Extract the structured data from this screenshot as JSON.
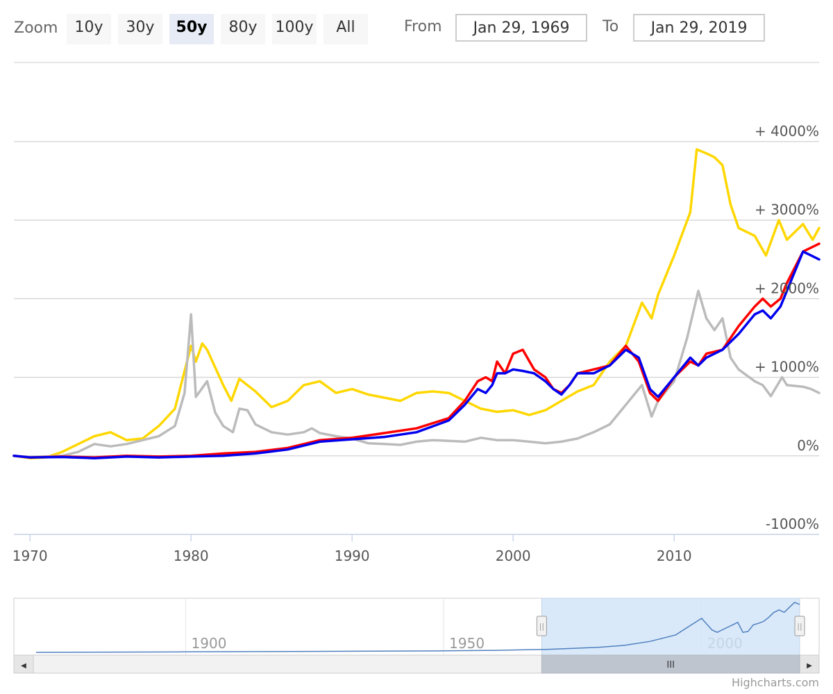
{
  "toolbar": {
    "zoom_label": "Zoom",
    "buttons": [
      "10y",
      "30y",
      "50y",
      "80y",
      "100y",
      "All"
    ],
    "active_button": "50y",
    "from_label": "From",
    "from_value": "Jan 29, 1969",
    "to_label": "To",
    "to_value": "Jan 29, 2019"
  },
  "credit": "Highcharts.com",
  "navigator": {
    "tick_labels": [
      "1900",
      "1950",
      "2000"
    ],
    "scroll_grip": "III",
    "scroll_left_arrow": "◀",
    "scroll_right_arrow": "▶",
    "handle_grip": "||"
  },
  "chart_data": {
    "type": "line",
    "xlabel": "",
    "ylabel": "",
    "x_range": [
      1969,
      2019
    ],
    "ylim": [
      -1000,
      4000
    ],
    "y_ticks": [
      -1000,
      0,
      1000,
      2000,
      3000,
      4000
    ],
    "y_tick_labels": [
      "-1000%",
      "0%",
      "+ 1000%",
      "+ 2000%",
      "+ 3000%",
      "+ 4000%"
    ],
    "x_ticks": [
      1970,
      1980,
      1990,
      2000,
      2010
    ],
    "x_tick_labels": [
      "1970",
      "1980",
      "1990",
      "2000",
      "2010"
    ],
    "grid": true,
    "legend": "none",
    "series": [
      {
        "color": "#ffd700",
        "points": [
          [
            1969,
            0
          ],
          [
            1970,
            -30
          ],
          [
            1971,
            -20
          ],
          [
            1972,
            50
          ],
          [
            1973,
            150
          ],
          [
            1974,
            250
          ],
          [
            1975,
            300
          ],
          [
            1976,
            200
          ],
          [
            1977,
            220
          ],
          [
            1978,
            380
          ],
          [
            1979,
            600
          ],
          [
            1980,
            1400
          ],
          [
            1980.3,
            1200
          ],
          [
            1980.7,
            1430
          ],
          [
            1981,
            1350
          ],
          [
            1982,
            900
          ],
          [
            1982.5,
            700
          ],
          [
            1983,
            980
          ],
          [
            1984,
            820
          ],
          [
            1985,
            620
          ],
          [
            1986,
            700
          ],
          [
            1987,
            900
          ],
          [
            1988,
            950
          ],
          [
            1989,
            800
          ],
          [
            1990,
            850
          ],
          [
            1991,
            780
          ],
          [
            1992,
            740
          ],
          [
            1993,
            700
          ],
          [
            1994,
            800
          ],
          [
            1995,
            820
          ],
          [
            1996,
            800
          ],
          [
            1997,
            700
          ],
          [
            1998,
            600
          ],
          [
            1999,
            560
          ],
          [
            2000,
            580
          ],
          [
            2001,
            520
          ],
          [
            2002,
            580
          ],
          [
            2003,
            700
          ],
          [
            2004,
            820
          ],
          [
            2005,
            900
          ],
          [
            2006,
            1200
          ],
          [
            2007,
            1400
          ],
          [
            2008,
            1950
          ],
          [
            2008.6,
            1750
          ],
          [
            2009,
            2050
          ],
          [
            2010,
            2550
          ],
          [
            2011,
            3100
          ],
          [
            2011.4,
            3900
          ],
          [
            2012,
            3850
          ],
          [
            2012.5,
            3800
          ],
          [
            2013,
            3700
          ],
          [
            2013.5,
            3200
          ],
          [
            2014,
            2900
          ],
          [
            2015,
            2800
          ],
          [
            2015.7,
            2550
          ],
          [
            2016.5,
            3000
          ],
          [
            2017,
            2750
          ],
          [
            2018,
            2950
          ],
          [
            2018.6,
            2750
          ],
          [
            2019,
            2900
          ]
        ]
      },
      {
        "color": "#bbbbbb",
        "points": [
          [
            1969,
            0
          ],
          [
            1970,
            -20
          ],
          [
            1971,
            -10
          ],
          [
            1972,
            0
          ],
          [
            1973,
            50
          ],
          [
            1974,
            150
          ],
          [
            1975,
            120
          ],
          [
            1976,
            150
          ],
          [
            1977,
            200
          ],
          [
            1978,
            250
          ],
          [
            1979,
            380
          ],
          [
            1979.6,
            800
          ],
          [
            1980,
            1800
          ],
          [
            1980.3,
            750
          ],
          [
            1981,
            950
          ],
          [
            1981.5,
            550
          ],
          [
            1982,
            380
          ],
          [
            1982.6,
            300
          ],
          [
            1983,
            600
          ],
          [
            1983.5,
            580
          ],
          [
            1984,
            400
          ],
          [
            1985,
            300
          ],
          [
            1986,
            270
          ],
          [
            1987,
            300
          ],
          [
            1987.5,
            350
          ],
          [
            1988,
            290
          ],
          [
            1989,
            250
          ],
          [
            1990,
            220
          ],
          [
            1991,
            160
          ],
          [
            1992,
            150
          ],
          [
            1993,
            140
          ],
          [
            1994,
            180
          ],
          [
            1995,
            200
          ],
          [
            1996,
            190
          ],
          [
            1997,
            180
          ],
          [
            1998,
            230
          ],
          [
            1999,
            200
          ],
          [
            2000,
            200
          ],
          [
            2001,
            180
          ],
          [
            2002,
            160
          ],
          [
            2003,
            180
          ],
          [
            2004,
            220
          ],
          [
            2005,
            300
          ],
          [
            2006,
            400
          ],
          [
            2007,
            650
          ],
          [
            2008,
            900
          ],
          [
            2008.6,
            500
          ],
          [
            2009,
            700
          ],
          [
            2010,
            950
          ],
          [
            2010.8,
            1500
          ],
          [
            2011.5,
            2100
          ],
          [
            2012,
            1750
          ],
          [
            2012.5,
            1600
          ],
          [
            2013,
            1750
          ],
          [
            2013.5,
            1250
          ],
          [
            2014,
            1100
          ],
          [
            2015,
            950
          ],
          [
            2015.5,
            900
          ],
          [
            2016,
            760
          ],
          [
            2016.7,
            1000
          ],
          [
            2017,
            900
          ],
          [
            2018,
            880
          ],
          [
            2018.5,
            850
          ],
          [
            2019,
            800
          ]
        ]
      },
      {
        "color": "#ff0000",
        "points": [
          [
            1969,
            0
          ],
          [
            1970,
            -20
          ],
          [
            1972,
            -10
          ],
          [
            1974,
            -20
          ],
          [
            1976,
            0
          ],
          [
            1978,
            -10
          ],
          [
            1980,
            0
          ],
          [
            1982,
            30
          ],
          [
            1984,
            50
          ],
          [
            1986,
            100
          ],
          [
            1988,
            200
          ],
          [
            1990,
            230
          ],
          [
            1992,
            290
          ],
          [
            1994,
            350
          ],
          [
            1996,
            480
          ],
          [
            1997,
            700
          ],
          [
            1997.8,
            950
          ],
          [
            1998.3,
            1000
          ],
          [
            1998.7,
            950
          ],
          [
            1999,
            1200
          ],
          [
            1999.5,
            1050
          ],
          [
            2000,
            1300
          ],
          [
            2000.6,
            1350
          ],
          [
            2001.3,
            1100
          ],
          [
            2002,
            1000
          ],
          [
            2002.5,
            850
          ],
          [
            2003,
            800
          ],
          [
            2003.5,
            900
          ],
          [
            2004,
            1050
          ],
          [
            2005,
            1100
          ],
          [
            2006,
            1150
          ],
          [
            2007,
            1400
          ],
          [
            2007.8,
            1200
          ],
          [
            2008.5,
            800
          ],
          [
            2009,
            700
          ],
          [
            2010,
            1000
          ],
          [
            2011,
            1200
          ],
          [
            2011.5,
            1150
          ],
          [
            2012,
            1300
          ],
          [
            2013,
            1350
          ],
          [
            2014,
            1650
          ],
          [
            2015,
            1900
          ],
          [
            2015.5,
            2000
          ],
          [
            2016,
            1900
          ],
          [
            2016.6,
            2000
          ],
          [
            2017,
            2200
          ],
          [
            2018,
            2600
          ],
          [
            2018.5,
            2650
          ],
          [
            2019,
            2700
          ]
        ]
      },
      {
        "color": "#0000ee",
        "points": [
          [
            1969,
            0
          ],
          [
            1970,
            -20
          ],
          [
            1972,
            -15
          ],
          [
            1974,
            -30
          ],
          [
            1976,
            -10
          ],
          [
            1978,
            -20
          ],
          [
            1980,
            -10
          ],
          [
            1982,
            0
          ],
          [
            1984,
            30
          ],
          [
            1986,
            80
          ],
          [
            1988,
            180
          ],
          [
            1990,
            210
          ],
          [
            1992,
            240
          ],
          [
            1994,
            300
          ],
          [
            1996,
            450
          ],
          [
            1997,
            650
          ],
          [
            1997.8,
            850
          ],
          [
            1998.3,
            800
          ],
          [
            1998.7,
            900
          ],
          [
            1999,
            1050
          ],
          [
            1999.5,
            1050
          ],
          [
            2000,
            1100
          ],
          [
            2000.6,
            1080
          ],
          [
            2001.3,
            1050
          ],
          [
            2002,
            950
          ],
          [
            2002.5,
            850
          ],
          [
            2003,
            780
          ],
          [
            2003.5,
            900
          ],
          [
            2004,
            1050
          ],
          [
            2005,
            1050
          ],
          [
            2006,
            1150
          ],
          [
            2007,
            1350
          ],
          [
            2007.8,
            1250
          ],
          [
            2008.5,
            850
          ],
          [
            2009,
            750
          ],
          [
            2010,
            1000
          ],
          [
            2011,
            1250
          ],
          [
            2011.5,
            1150
          ],
          [
            2012,
            1250
          ],
          [
            2013,
            1350
          ],
          [
            2014,
            1550
          ],
          [
            2015,
            1800
          ],
          [
            2015.5,
            1850
          ],
          [
            2016,
            1750
          ],
          [
            2016.6,
            1900
          ],
          [
            2017,
            2100
          ],
          [
            2018,
            2600
          ],
          [
            2018.5,
            2550
          ],
          [
            2019,
            2500
          ]
        ]
      }
    ],
    "navigator": {
      "color": "#4f7fbf",
      "x_range": [
        1871,
        2019
      ],
      "selected_range": [
        1969,
        2019
      ],
      "points": [
        [
          1871,
          0
        ],
        [
          1900,
          1
        ],
        [
          1925,
          2
        ],
        [
          1950,
          3
        ],
        [
          1960,
          4
        ],
        [
          1970,
          6
        ],
        [
          1980,
          10
        ],
        [
          1985,
          14
        ],
        [
          1990,
          22
        ],
        [
          1995,
          35
        ],
        [
          1998,
          55
        ],
        [
          2000,
          68
        ],
        [
          2002,
          45
        ],
        [
          2003,
          40
        ],
        [
          2005,
          50
        ],
        [
          2007,
          60
        ],
        [
          2008,
          40
        ],
        [
          2009,
          42
        ],
        [
          2010,
          55
        ],
        [
          2011,
          58
        ],
        [
          2012,
          62
        ],
        [
          2013,
          70
        ],
        [
          2014,
          80
        ],
        [
          2015,
          85
        ],
        [
          2016,
          80
        ],
        [
          2017,
          90
        ],
        [
          2018,
          100
        ],
        [
          2019,
          96
        ]
      ]
    }
  }
}
